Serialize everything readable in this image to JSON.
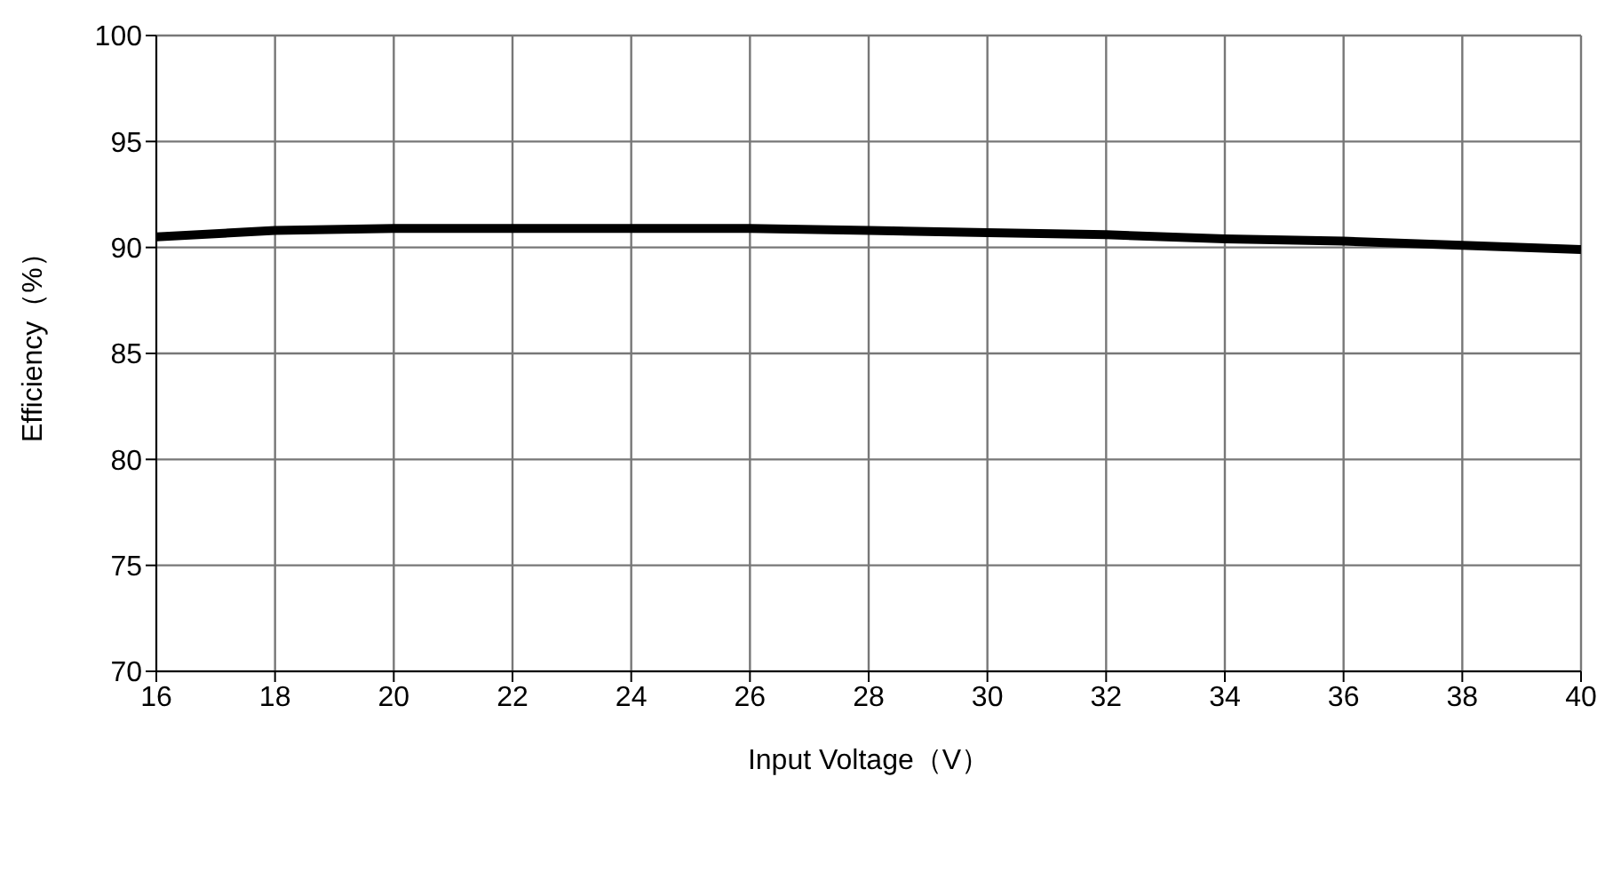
{
  "chart_data": {
    "type": "line",
    "xlabel": "Input Voltage（V）",
    "ylabel": "Efficiency（%）",
    "x": [
      16,
      18,
      20,
      22,
      24,
      26,
      28,
      30,
      32,
      34,
      36,
      38,
      40
    ],
    "series": [
      {
        "color": "#000000",
        "values": [
          90.5,
          90.8,
          90.9,
          90.9,
          90.9,
          90.9,
          90.8,
          90.7,
          90.6,
          90.4,
          90.3,
          90.1,
          89.9
        ]
      }
    ],
    "xlim": [
      16,
      40
    ],
    "xticks": [
      16,
      18,
      20,
      22,
      24,
      26,
      28,
      30,
      32,
      34,
      36,
      38,
      40
    ],
    "ylim": [
      70,
      100
    ],
    "yticks": [
      70,
      75,
      80,
      85,
      90,
      95,
      100
    ],
    "grid": true,
    "marker": "none",
    "line_style": "solid"
  }
}
